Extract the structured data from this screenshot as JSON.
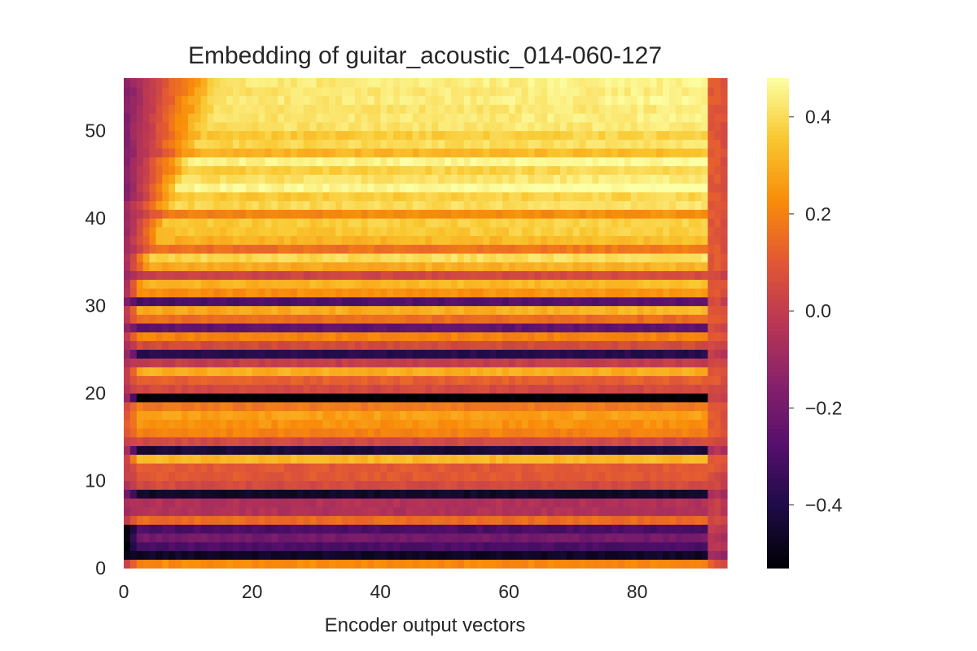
{
  "chart_data": {
    "type": "heatmap",
    "title": "Embedding of guitar_acoustic_014-060-127",
    "xlabel": "Encoder output vectors",
    "ylabel": "",
    "x_cells": 94,
    "y_cells": 56,
    "xlim": [
      0,
      94
    ],
    "ylim": [
      0,
      56
    ],
    "x_ticks": [
      0,
      20,
      40,
      60,
      80
    ],
    "x_tick_labels": [
      "0",
      "20",
      "40",
      "60",
      "80"
    ],
    "y_ticks": [
      0,
      10,
      20,
      30,
      40,
      50
    ],
    "y_tick_labels": [
      "0",
      "10",
      "20",
      "30",
      "40",
      "50"
    ],
    "colormap": "inferno",
    "colorbar": {
      "vmin": -0.53,
      "vmax": 0.48,
      "ticks": [
        -0.4,
        -0.2,
        0.0,
        0.2,
        0.4
      ],
      "tick_labels": [
        "−0.4",
        "−0.2",
        "0.0",
        "0.2",
        "0.4"
      ]
    },
    "row_profiles": [
      {
        "row": 0,
        "base": 0.22,
        "start": 0.05,
        "end": 0.1
      },
      {
        "row": 1,
        "base": -0.46,
        "start": -0.5,
        "end": -0.1
      },
      {
        "row": 2,
        "base": -0.3,
        "start": -0.5,
        "end": 0.0
      },
      {
        "row": 3,
        "base": -0.2,
        "start": -0.5,
        "end": -0.05
      },
      {
        "row": 4,
        "base": -0.3,
        "start": -0.5,
        "end": 0.0
      },
      {
        "row": 5,
        "base": 0.15,
        "start": 0.0,
        "end": 0.05
      },
      {
        "row": 6,
        "base": -0.05,
        "start": -0.1,
        "end": 0.0
      },
      {
        "row": 7,
        "base": -0.05,
        "start": -0.05,
        "end": 0.0
      },
      {
        "row": 8,
        "base": -0.45,
        "start": -0.2,
        "end": -0.05
      },
      {
        "row": 9,
        "base": 0.05,
        "start": -0.05,
        "end": 0.05
      },
      {
        "row": 10,
        "base": 0.1,
        "start": 0.0,
        "end": 0.05
      },
      {
        "row": 11,
        "base": 0.1,
        "start": 0.0,
        "end": 0.1
      },
      {
        "row": 12,
        "base": 0.32,
        "start": 0.05,
        "end": 0.1
      },
      {
        "row": 13,
        "base": -0.42,
        "start": -0.1,
        "end": -0.05
      },
      {
        "row": 14,
        "base": 0.05,
        "start": 0.0,
        "end": 0.05
      },
      {
        "row": 15,
        "base": 0.2,
        "start": 0.1,
        "end": 0.1
      },
      {
        "row": 16,
        "base": 0.24,
        "start": 0.1,
        "end": 0.1
      },
      {
        "row": 17,
        "base": 0.27,
        "start": 0.1,
        "end": 0.1
      },
      {
        "row": 18,
        "base": 0.18,
        "start": 0.05,
        "end": 0.1
      },
      {
        "row": 19,
        "base": -0.53,
        "start": -0.1,
        "end": 0.05
      },
      {
        "row": 20,
        "base": 0.05,
        "start": -0.05,
        "end": 0.05
      },
      {
        "row": 21,
        "base": 0.12,
        "start": 0.0,
        "end": 0.1
      },
      {
        "row": 22,
        "base": 0.3,
        "start": 0.0,
        "end": 0.1
      },
      {
        "row": 23,
        "base": 0.0,
        "start": -0.05,
        "end": 0.05
      },
      {
        "row": 24,
        "base": -0.38,
        "start": -0.1,
        "end": 0.0
      },
      {
        "row": 25,
        "base": 0.05,
        "start": -0.05,
        "end": 0.05
      },
      {
        "row": 26,
        "base": 0.2,
        "start": 0.0,
        "end": 0.1
      },
      {
        "row": 27,
        "base": -0.25,
        "start": -0.1,
        "end": 0.05
      },
      {
        "row": 28,
        "base": 0.15,
        "start": 0.0,
        "end": 0.1
      },
      {
        "row": 29,
        "base": 0.28,
        "start": 0.0,
        "end": 0.1
      },
      {
        "row": 30,
        "base": -0.3,
        "start": -0.2,
        "end": 0.05
      },
      {
        "row": 31,
        "base": 0.22,
        "start": -0.05,
        "end": 0.1
      },
      {
        "row": 32,
        "base": 0.3,
        "start": -0.05,
        "end": 0.1
      },
      {
        "row": 33,
        "base": 0.02,
        "start": -0.1,
        "end": 0.05
      },
      {
        "row": 34,
        "base": 0.28,
        "start": -0.05,
        "end": 0.1
      },
      {
        "row": 35,
        "base": 0.38,
        "start": -0.05,
        "end": 0.1
      },
      {
        "row": 36,
        "base": 0.15,
        "start": -0.1,
        "end": 0.1
      },
      {
        "row": 37,
        "base": 0.3,
        "start": -0.1,
        "end": 0.1
      },
      {
        "row": 38,
        "base": 0.34,
        "start": -0.1,
        "end": 0.1
      },
      {
        "row": 39,
        "base": 0.35,
        "start": -0.1,
        "end": 0.1
      },
      {
        "row": 40,
        "base": 0.2,
        "start": -0.1,
        "end": 0.1
      },
      {
        "row": 41,
        "base": 0.38,
        "start": -0.1,
        "end": 0.1
      },
      {
        "row": 42,
        "base": 0.35,
        "start": -0.15,
        "end": 0.1
      },
      {
        "row": 43,
        "base": 0.45,
        "start": -0.15,
        "end": 0.1
      },
      {
        "row": 44,
        "base": 0.4,
        "start": -0.15,
        "end": 0.1
      },
      {
        "row": 45,
        "base": 0.36,
        "start": -0.15,
        "end": 0.1
      },
      {
        "row": 46,
        "base": 0.44,
        "start": -0.15,
        "end": 0.1
      },
      {
        "row": 47,
        "base": 0.3,
        "start": -0.15,
        "end": 0.1
      },
      {
        "row": 48,
        "base": 0.38,
        "start": -0.15,
        "end": 0.1
      },
      {
        "row": 49,
        "base": 0.35,
        "start": -0.15,
        "end": 0.1
      },
      {
        "row": 50,
        "base": 0.4,
        "start": -0.15,
        "end": 0.1
      },
      {
        "row": 51,
        "base": 0.41,
        "start": -0.15,
        "end": 0.1
      },
      {
        "row": 52,
        "base": 0.4,
        "start": -0.15,
        "end": 0.1
      },
      {
        "row": 53,
        "base": 0.42,
        "start": -0.15,
        "end": 0.1
      },
      {
        "row": 54,
        "base": 0.41,
        "start": -0.15,
        "end": 0.1
      },
      {
        "row": 55,
        "base": 0.42,
        "start": -0.15,
        "end": 0.1
      }
    ]
  }
}
